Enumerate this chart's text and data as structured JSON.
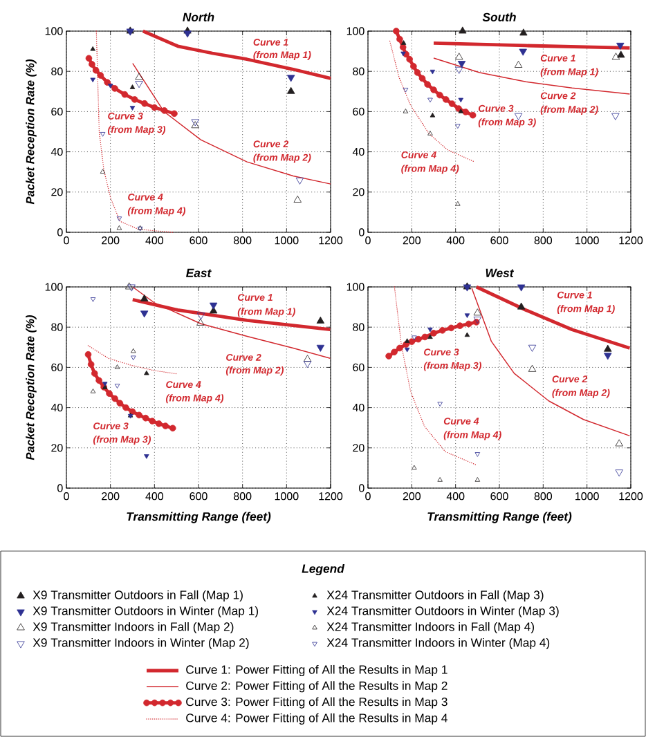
{
  "chart_data": [
    {
      "type": "scatter",
      "title": "North",
      "ylabel": "Packet Reception Rate (%)",
      "xlim": [
        0,
        1200
      ],
      "ylim": [
        0,
        100
      ],
      "xticks": [
        0,
        200,
        400,
        600,
        800,
        1000,
        1200
      ],
      "yticks": [
        0,
        20,
        40,
        60,
        80,
        100
      ],
      "grid": true,
      "series": [
        {
          "type": "scatter",
          "color": "#231f20",
          "marker": "triangle",
          "x": [
            290,
            550,
            1020
          ],
          "values": [
            100,
            100,
            70
          ]
        },
        {
          "type": "scatter",
          "color": "#2e3192",
          "marker": "triangle-down",
          "x": [
            290,
            550,
            1020
          ],
          "values": [
            100,
            99,
            77
          ]
        },
        {
          "type": "scatter",
          "color": "#231f20",
          "marker": "triangle-open",
          "x": [
            330,
            585,
            1050
          ],
          "values": [
            77,
            53,
            16
          ]
        },
        {
          "type": "scatter",
          "color": "#2e3192",
          "marker": "triangle-down-open",
          "x": [
            330,
            585,
            1060
          ],
          "values": [
            74,
            55,
            26
          ]
        },
        {
          "type": "scatter",
          "color": "#231f20",
          "marker": "triangle",
          "x": [
            120,
            300
          ],
          "values": [
            91,
            72
          ]
        },
        {
          "type": "scatter",
          "color": "#2e3192",
          "marker": "triangle-down",
          "x": [
            120,
            200,
            300
          ],
          "values": [
            76,
            73,
            62
          ]
        },
        {
          "type": "scatter",
          "color": "#231f20",
          "marker": "triangle-open",
          "x": [
            165,
            240,
            335
          ],
          "values": [
            30,
            2,
            2
          ]
        },
        {
          "type": "scatter",
          "color": "#2e3192",
          "marker": "triangle-down-open",
          "x": [
            165,
            240,
            335
          ],
          "values": [
            49,
            7,
            2
          ]
        },
        {
          "type": "line",
          "color": "#d2282e",
          "line_style": "solid",
          "marker": "none",
          "x": [
            348,
            506,
            663,
            820,
            1030,
            1200
          ],
          "values": [
            100,
            92.5,
            89,
            86,
            81,
            76.5
          ]
        },
        {
          "type": "line",
          "color": "#d2282e",
          "line_style": "solid",
          "marker": "none",
          "x": [
            301,
            443,
            610,
            820,
            1030,
            1200
          ],
          "values": [
            84,
            60,
            46,
            35,
            28,
            24
          ]
        },
        {
          "type": "line",
          "color": "#d2282e",
          "line_style": "solid",
          "marker": "circle",
          "x": [
            102,
            116,
            134,
            155,
            186,
            220,
            265,
            310,
            355,
            400,
            445,
            490
          ],
          "values": [
            86.5,
            83.5,
            80.5,
            78,
            74.5,
            71.5,
            68.5,
            66,
            64,
            62,
            60.5,
            59
          ]
        },
        {
          "type": "line",
          "color": "#d2282e",
          "line_style": "dotted",
          "marker": "none",
          "x": [
            136,
            149,
            170,
            201,
            243,
            327,
            485
          ],
          "values": [
            100,
            50,
            31,
            17,
            5.5,
            1.5,
            0
          ]
        }
      ],
      "annotations": [
        "Curve 1",
        "(from Map 1)",
        "Curve 3",
        "(from Map 3)",
        "Curve 2",
        "(from Map 2)",
        "Curve 4",
        "(from Map 4)"
      ]
    },
    {
      "type": "scatter",
      "title": "South",
      "xlim": [
        0,
        1200
      ],
      "ylim": [
        0,
        100
      ],
      "xticks": [
        0,
        200,
        400,
        600,
        800,
        1000,
        1200
      ],
      "yticks": [
        0,
        20,
        40,
        60,
        80,
        100
      ],
      "grid": true,
      "series": [
        {
          "type": "scatter",
          "color": "#231f20",
          "marker": "triangle",
          "x": [
            432,
            710,
            1155
          ],
          "values": [
            100,
            99,
            88
          ]
        },
        {
          "type": "scatter",
          "color": "#2e3192",
          "marker": "triangle-down",
          "x": [
            428,
            708,
            1152
          ],
          "values": [
            84,
            90,
            93
          ]
        },
        {
          "type": "scatter",
          "color": "#231f20",
          "marker": "triangle-open",
          "x": [
            416,
            687,
            1132
          ],
          "values": [
            87,
            83,
            87
          ]
        },
        {
          "type": "scatter",
          "color": "#2e3192",
          "marker": "triangle-down-open",
          "x": [
            416,
            687,
            1130
          ],
          "values": [
            81,
            58,
            58
          ]
        },
        {
          "type": "scatter",
          "color": "#231f20",
          "marker": "triangle",
          "x": [
            163,
            295,
            424
          ],
          "values": [
            94,
            58,
            60
          ]
        },
        {
          "type": "scatter",
          "color": "#2e3192",
          "marker": "triangle-down",
          "x": [
            161,
            295,
            424
          ],
          "values": [
            89,
            80,
            66
          ]
        },
        {
          "type": "scatter",
          "color": "#231f20",
          "marker": "triangle-open",
          "x": [
            172,
            284,
            410
          ],
          "values": [
            60,
            49,
            14
          ]
        },
        {
          "type": "scatter",
          "color": "#2e3192",
          "marker": "triangle-down-open",
          "x": [
            172,
            284,
            410
          ],
          "values": [
            71,
            66,
            53
          ]
        },
        {
          "type": "line",
          "color": "#d2282e",
          "line_style": "solid",
          "marker": "none",
          "x": [
            300,
            721,
            1195
          ],
          "values": [
            94,
            92.8,
            91.6
          ]
        },
        {
          "type": "line",
          "color": "#d2282e",
          "line_style": "solid",
          "marker": "none",
          "x": [
            300,
            510,
            721,
            932,
            1195
          ],
          "values": [
            86.6,
            79.4,
            74.8,
            71.7,
            68.7
          ]
        },
        {
          "type": "line",
          "color": "#d2282e",
          "line_style": "solid",
          "marker": "circle",
          "x": [
            129,
            145,
            160,
            174,
            190,
            208,
            226,
            248,
            272,
            300,
            328,
            356,
            384,
            414,
            446,
            479
          ],
          "values": [
            100,
            96,
            92,
            88.5,
            86,
            82.5,
            79.4,
            76.5,
            73.5,
            70.8,
            68.2,
            66,
            63.9,
            61.5,
            59.8,
            58.2
          ]
        },
        {
          "type": "line",
          "color": "#d2282e",
          "line_style": "dotted",
          "marker": "none",
          "x": [
            100,
            142,
            195,
            279,
            363,
            487
          ],
          "values": [
            95,
            77,
            63,
            49,
            41,
            35
          ]
        }
      ],
      "annotations": [
        "Curve 1",
        "(from Map 1)",
        "Curve 2",
        "(from Map 2)",
        "Curve 3",
        "(from Map 3)",
        "Curve 4",
        "(from Map 4)"
      ]
    },
    {
      "type": "scatter",
      "title": "East",
      "xlabel": "Transmitting Range (feet)",
      "ylabel": "Packet Reception Rate (%)",
      "xlim": [
        0,
        1200
      ],
      "ylim": [
        0,
        100
      ],
      "xticks": [
        0,
        200,
        400,
        600,
        800,
        1000,
        1200
      ],
      "yticks": [
        0,
        20,
        40,
        60,
        80,
        100
      ],
      "grid": true,
      "series": [
        {
          "type": "scatter",
          "color": "#231f20",
          "marker": "triangle",
          "x": [
            354,
            668,
            1154
          ],
          "values": [
            94,
            88,
            83
          ]
        },
        {
          "type": "scatter",
          "color": "#2e3192",
          "marker": "triangle-down",
          "x": [
            354,
            668,
            1154
          ],
          "values": [
            87,
            91,
            70
          ]
        },
        {
          "type": "scatter",
          "color": "#231f20",
          "marker": "triangle-open",
          "x": [
            285,
            609,
            1095
          ],
          "values": [
            100,
            82,
            64
          ]
        },
        {
          "type": "scatter",
          "color": "#2e3192",
          "marker": "triangle-down-open",
          "x": [
            296,
            611,
            1095
          ],
          "values": [
            100,
            86,
            62
          ]
        },
        {
          "type": "scatter",
          "color": "#231f20",
          "marker": "triangle",
          "x": [
            175,
            291,
            364
          ],
          "values": [
            50,
            36,
            57
          ]
        },
        {
          "type": "scatter",
          "color": "#2e3192",
          "marker": "triangle-down",
          "x": [
            175,
            291,
            364
          ],
          "values": [
            52,
            36,
            16
          ]
        },
        {
          "type": "scatter",
          "color": "#231f20",
          "marker": "triangle-open",
          "x": [
            121,
            231,
            304
          ],
          "values": [
            48,
            60,
            68
          ]
        },
        {
          "type": "scatter",
          "color": "#2e3192",
          "marker": "triangle-down-open",
          "x": [
            121,
            231,
            304
          ],
          "values": [
            94,
            51,
            65
          ]
        },
        {
          "type": "line",
          "color": "#d2282e",
          "line_style": "solid",
          "marker": "none",
          "x": [
            301,
            506,
            821,
            1198
          ],
          "values": [
            93.7,
            88.5,
            83.4,
            78.8
          ]
        },
        {
          "type": "line",
          "color": "#d2282e",
          "line_style": "solid",
          "marker": "none",
          "x": [
            301,
            401,
            611,
            821,
            1030,
            1198
          ],
          "values": [
            100,
            92,
            81.7,
            75.4,
            69.6,
            64.5
          ]
        },
        {
          "type": "line",
          "color": "#d2282e",
          "line_style": "solid",
          "marker": "circle",
          "x": [
            99,
            112,
            128,
            148,
            170,
            195,
            220,
            243,
            270,
            300,
            330,
            360,
            390,
            420,
            450,
            483
          ],
          "values": [
            66.4,
            61.5,
            57,
            53.5,
            50.2,
            47,
            44.5,
            42.2,
            40,
            38,
            36.3,
            34.8,
            33.3,
            32,
            30.9,
            29.8
          ]
        },
        {
          "type": "line",
          "color": "#d2282e",
          "line_style": "dotted",
          "marker": "none",
          "x": [
            99,
            191,
            296,
            401,
            500
          ],
          "values": [
            70.8,
            64.5,
            61,
            58.4,
            56.8
          ]
        }
      ],
      "annotations": [
        "Curve 1",
        "(from Map 1)",
        "Curve 2",
        "(from Map 2)",
        "Curve 4",
        "(from Map 4)",
        "Curve 3",
        "(from Map 3)"
      ]
    },
    {
      "type": "scatter",
      "title": "West",
      "xlabel": "Transmitting Range (feet)",
      "xlim": [
        0,
        1200
      ],
      "ylim": [
        0,
        100
      ],
      "xticks": [
        0,
        200,
        400,
        600,
        800,
        1000,
        1200
      ],
      "yticks": [
        0,
        20,
        40,
        60,
        80,
        100
      ],
      "grid": true,
      "legend": "bottom",
      "legend_title": "Legend",
      "series": [
        {
          "name": "X9 Transmitter Outdoors in Fall (Map 1)",
          "type": "scatter",
          "color": "#231f20",
          "marker": "triangle",
          "x": [
            453,
            700,
            1095
          ],
          "values": [
            100,
            90,
            69
          ]
        },
        {
          "name": "X9 Transmitter Outdoors in Winter (Map 1)",
          "type": "scatter",
          "color": "#2e3192",
          "marker": "triangle-down",
          "x": [
            453,
            700,
            1095
          ],
          "values": [
            100,
            100,
            66
          ]
        },
        {
          "name": "X9 Transmitter Indoors in Fall (Map 2)",
          "type": "scatter",
          "color": "#231f20",
          "marker": "triangle-open",
          "x": [
            500,
            750,
            1147
          ],
          "values": [
            87,
            59,
            22
          ]
        },
        {
          "name": "X9 Transmitter Indoors in Winter (Map 2)",
          "type": "scatter",
          "color": "#2e3192",
          "marker": "triangle-down-open",
          "x": [
            500,
            750,
            1147
          ],
          "values": [
            84,
            70,
            8
          ]
        },
        {
          "name": "X24 Transmitter Outdoors in Fall (Map 3)",
          "type": "scatter",
          "color": "#231f20",
          "marker": "triangle",
          "x": [
            179,
            284,
            453
          ],
          "values": [
            73,
            75,
            76
          ]
        },
        {
          "name": "X24 Transmitter Outdoors in Winter (Map 3)",
          "type": "scatter",
          "color": "#2e3192",
          "marker": "triangle-down",
          "x": [
            179,
            284,
            453
          ],
          "values": [
            69,
            79,
            86
          ]
        },
        {
          "name": "X24 Transmitter Indoors in Fall (Map 4)",
          "type": "scatter",
          "color": "#231f20",
          "marker": "triangle-open",
          "x": [
            211,
            329,
            500
          ],
          "values": [
            10,
            4,
            4
          ]
        },
        {
          "name": "X24 Transmitter Indoors in Winter (Map 4)",
          "type": "scatter",
          "color": "#2e3192",
          "marker": "triangle-down-open",
          "x": [
            211,
            329,
            500
          ],
          "values": [
            75,
            42,
            17
          ]
        },
        {
          "name": "Curve 1: Power Fitting of All the Results in Map 1",
          "type": "line",
          "color": "#d2282e",
          "line_style": "solid",
          "marker": "none",
          "x": [
            495,
            721,
            932,
            1195
          ],
          "values": [
            100,
            88.5,
            78.8,
            69.6
          ]
        },
        {
          "name": "Curve 2: Power Fitting of All the Results in Map 2",
          "type": "line",
          "color": "#d2282e",
          "line_style": "solid",
          "marker": "none",
          "x": [
            474,
            563,
            668,
            826,
            984,
            1195
          ],
          "values": [
            99.4,
            73,
            57,
            43.3,
            34.1,
            26
          ]
        },
        {
          "name": "Curve 3: Power Fitting of All the Results in Map 3",
          "type": "line",
          "color": "#d2282e",
          "line_style": "solid",
          "marker": "circle",
          "x": [
            95,
            120,
            145,
            174,
            200,
            230,
            260,
            300,
            340,
            380,
            420,
            460,
            495
          ],
          "values": [
            65.6,
            67.6,
            69.6,
            71.4,
            72.8,
            74,
            75.1,
            77,
            78.4,
            79.6,
            80.7,
            81.6,
            82.5
          ]
        },
        {
          "name": "Curve 4: Power Fitting of All the Results in Map 4",
          "type": "line",
          "color": "#d2282e",
          "line_style": "dotted",
          "marker": "none",
          "x": [
            121,
            153,
            195,
            258,
            353,
            495
          ],
          "values": [
            100,
            70.8,
            47.9,
            30.7,
            18.1,
            11.5
          ]
        }
      ],
      "annotations": [
        "Curve 1",
        "(from Map 1)",
        "Curve 2",
        "(from Map 2)",
        "Curve 3",
        "(from Map 3)",
        "Curve 4",
        "(from Map 4)"
      ]
    }
  ]
}
